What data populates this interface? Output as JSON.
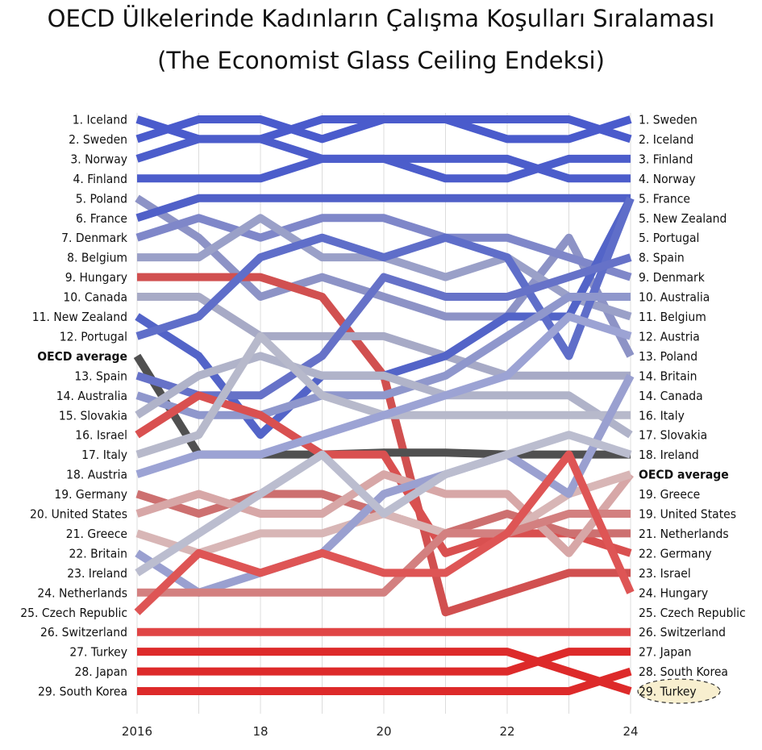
{
  "title": "OECD Ülkelerinde Kadınların Çalışma Koşulları Sıralaması",
  "subtitle": "(The Economist Glass Ceiling Endeksi)",
  "chart_data": {
    "type": "line",
    "x": [
      "2016",
      "2017",
      "18",
      "2019",
      "20",
      "2021",
      "22",
      "2023",
      "24"
    ],
    "x_tick_labels": [
      "2016",
      "18",
      "20",
      "22",
      "24"
    ],
    "y_axis": "rank (1 = top), OECD average shown as its own row",
    "left_labels": [
      "1. Iceland",
      "2. Sweden",
      "3. Norway",
      "4. Finland",
      "5. Poland",
      "6. France",
      "7. Denmark",
      "8. Belgium",
      "9. Hungary",
      "10. Canada",
      "11. New Zealand",
      "12. Portugal",
      "OECD average",
      "13. Spain",
      "14. Australia",
      "15. Slovakia",
      "16. Israel",
      "17. Italy",
      "18. Austria",
      "19. Germany",
      "20. United States",
      "21. Greece",
      "22. Britain",
      "23. Ireland",
      "24. Netherlands",
      "25. Czech Republic",
      "26. Switzerland",
      "27. Turkey",
      "28. Japan",
      "29. South Korea"
    ],
    "right_labels": [
      "1. Sweden",
      "2. Iceland",
      "3. Finland",
      "4. Norway",
      "5. France",
      "5. New Zealand",
      "5. Portugal",
      "8. Spain",
      "9. Denmark",
      "10. Australia",
      "11. Belgium",
      "12. Austria",
      "13. Poland",
      "14. Britain",
      "14. Canada",
      "16. Italy",
      "17. Slovakia",
      "18. Ireland",
      "OECD average",
      "19. Greece",
      "19. United States",
      "21. Netherlands",
      "22. Germany",
      "23. Israel",
      "24. Hungary",
      "25. Czech Republic",
      "26. Switzerland",
      "27. Japan",
      "28. South Korea",
      "29. Turkey"
    ],
    "highlight_label": "29. Turkey",
    "series": [
      {
        "name": "Iceland",
        "color": "#4a5bcc",
        "values": [
          1,
          2,
          2,
          1,
          1,
          1,
          1,
          1,
          2
        ]
      },
      {
        "name": "Sweden",
        "color": "#4a5bcc",
        "values": [
          2,
          1,
          1,
          2,
          1,
          1,
          2,
          2,
          1
        ]
      },
      {
        "name": "Norway",
        "color": "#4c5dcb",
        "values": [
          3,
          2,
          2,
          3,
          3,
          3,
          3,
          4,
          4
        ]
      },
      {
        "name": "Finland",
        "color": "#4c5dcb",
        "values": [
          4,
          4,
          4,
          3,
          3,
          4,
          4,
          3,
          3
        ]
      },
      {
        "name": "Poland",
        "color": "#8d93c6",
        "values": [
          5,
          7,
          10,
          9,
          10,
          11,
          11,
          7,
          13
        ]
      },
      {
        "name": "France",
        "color": "#5060c8",
        "values": [
          6,
          5,
          5,
          5,
          5,
          5,
          5,
          5,
          5
        ]
      },
      {
        "name": "Denmark",
        "color": "#7f87c9",
        "values": [
          7,
          6,
          7,
          6,
          6,
          7,
          7,
          8,
          9
        ]
      },
      {
        "name": "Belgium",
        "color": "#9aa0c8",
        "values": [
          8,
          8,
          6,
          8,
          8,
          9,
          8,
          10,
          11
        ]
      },
      {
        "name": "Hungary",
        "color": "#d15050",
        "values": [
          9,
          9,
          9,
          10,
          14,
          26,
          25,
          24,
          24
        ]
      },
      {
        "name": "Canada",
        "color": "#a7aac6",
        "values": [
          10,
          10,
          12,
          12,
          12,
          13,
          14,
          14,
          14
        ]
      },
      {
        "name": "New Zealand",
        "color": "#5364c8",
        "values": [
          11,
          13,
          17,
          14,
          14,
          13,
          11,
          11,
          5
        ]
      },
      {
        "name": "Portugal",
        "color": "#5f6ec9",
        "values": [
          12,
          11,
          8,
          7,
          8,
          7,
          8,
          13,
          5
        ]
      },
      {
        "name": "OECD average",
        "color": "#505050",
        "values": [
          13,
          18,
          18,
          18,
          17.9,
          17.9,
          18,
          18,
          18
        ]
      },
      {
        "name": "Spain",
        "color": "#6672c8",
        "values": [
          14,
          15,
          15,
          13,
          9,
          10,
          10,
          9,
          8
        ]
      },
      {
        "name": "Australia",
        "color": "#8f97cc",
        "values": [
          15,
          16,
          16,
          15,
          15,
          14,
          12,
          10,
          10
        ]
      },
      {
        "name": "Slovakia",
        "color": "#b0b3c9",
        "values": [
          16,
          14,
          13,
          14,
          14,
          15,
          15,
          15,
          17
        ]
      },
      {
        "name": "Israel",
        "color": "#d95050",
        "values": [
          17,
          15,
          16,
          18,
          18,
          23,
          22,
          22,
          23
        ]
      },
      {
        "name": "Italy",
        "color": "#b7b9cb",
        "values": [
          18,
          17,
          12,
          15,
          16,
          16,
          16,
          16,
          16
        ]
      },
      {
        "name": "Austria",
        "color": "#9ca3d4",
        "values": [
          19,
          18,
          18,
          17,
          16,
          15,
          14,
          11,
          12
        ]
      },
      {
        "name": "Germany",
        "color": "#cd7070",
        "values": [
          20,
          21,
          20,
          20,
          21,
          22,
          21,
          22,
          22
        ]
      },
      {
        "name": "United States",
        "color": "#d7a7a7",
        "values": [
          21,
          20,
          21,
          21,
          19,
          20,
          20,
          23,
          19
        ]
      },
      {
        "name": "Greece",
        "color": "#d8b6b6",
        "values": [
          22,
          23,
          22,
          22,
          21,
          22,
          22,
          20,
          19
        ]
      },
      {
        "name": "Britain",
        "color": "#9aa0d0",
        "values": [
          23,
          25,
          24,
          23,
          20,
          19,
          18,
          20,
          14
        ]
      },
      {
        "name": "Ireland",
        "color": "#bbbdcf",
        "values": [
          24,
          22,
          20,
          18,
          21,
          19,
          18,
          17,
          18
        ]
      },
      {
        "name": "Netherlands",
        "color": "#d38080",
        "values": [
          25,
          25,
          25,
          25,
          25,
          22,
          22,
          21,
          21
        ]
      },
      {
        "name": "Czech Republic",
        "color": "#de5555",
        "values": [
          26,
          23,
          24,
          23,
          24,
          24,
          22,
          18,
          25
        ]
      },
      {
        "name": "Switzerland",
        "color": "#e04545",
        "values": [
          27,
          27,
          27,
          27,
          27,
          27,
          27,
          27,
          27
        ]
      },
      {
        "name": "Turkey",
        "color": "#dd2a2a",
        "values": [
          28,
          28,
          28,
          28,
          28,
          28,
          28,
          29,
          30
        ]
      },
      {
        "name": "Japan",
        "color": "#dd2a2a",
        "values": [
          29,
          29,
          29,
          29,
          29,
          29,
          29,
          28,
          28
        ]
      },
      {
        "name": "South Korea",
        "color": "#dd2a2a",
        "values": [
          30,
          30,
          30,
          30,
          30,
          30,
          30,
          30,
          29
        ]
      }
    ]
  }
}
